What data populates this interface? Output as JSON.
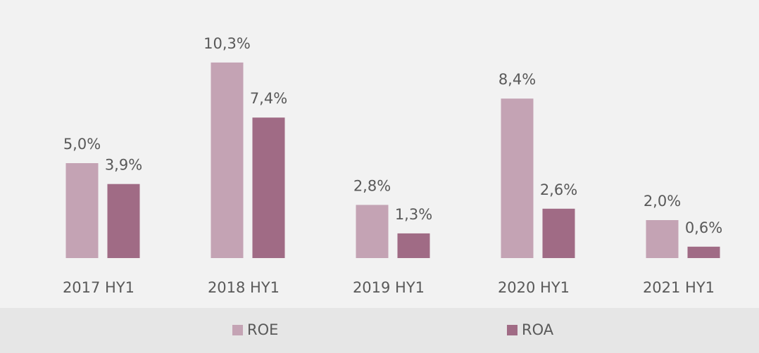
{
  "chart_data": {
    "type": "bar",
    "categories": [
      "2017 HY1",
      "2018 HY1",
      "2019 HY1",
      "2020 HY1",
      "2021 HY1"
    ],
    "series": [
      {
        "name": "ROE",
        "color": "#c4a3b4",
        "values": [
          5.0,
          10.3,
          2.8,
          8.4,
          2.0
        ],
        "value_labels": [
          "5,0%",
          "10,3%",
          "2,8%",
          "8,4%",
          "2,0%"
        ]
      },
      {
        "name": "ROA",
        "color": "#a06b85",
        "values": [
          3.9,
          7.4,
          1.3,
          2.6,
          0.6
        ],
        "value_labels": [
          "3,9%",
          "7,4%",
          "1,3%",
          "2,6%",
          "0,6%"
        ]
      }
    ],
    "legend": "bottom"
  }
}
